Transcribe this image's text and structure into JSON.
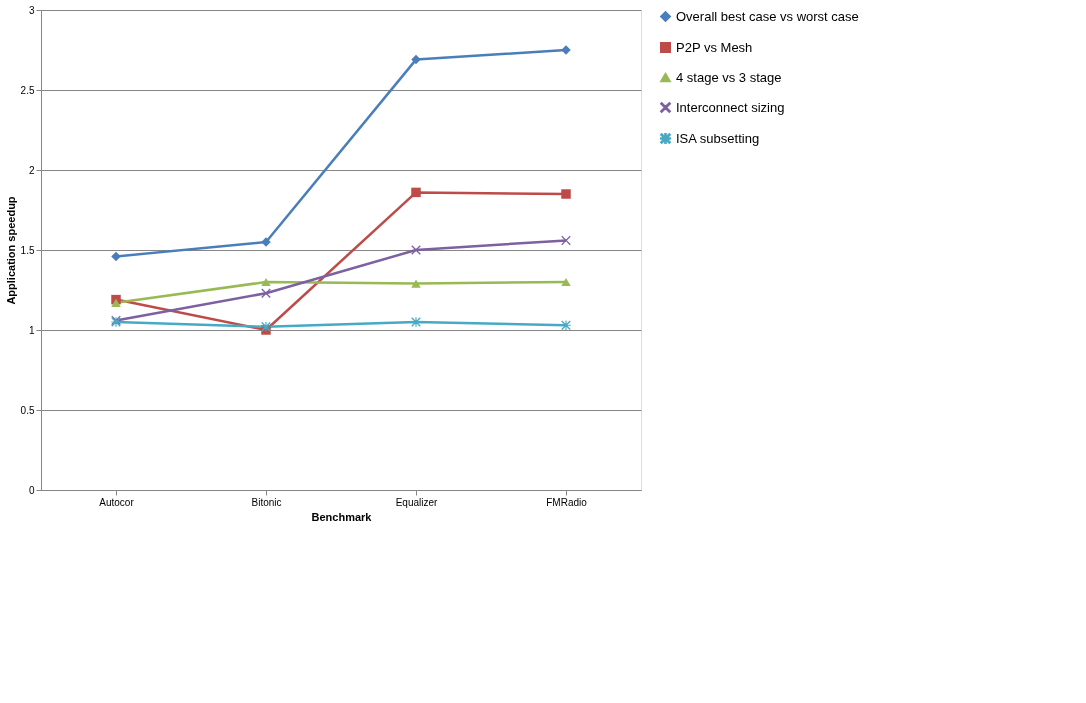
{
  "chart_data": {
    "type": "line",
    "xlabel": "Benchmark",
    "ylabel": "Application speedup",
    "categories": [
      "Autocor",
      "Bitonic",
      "Equalizer",
      "FMRadio"
    ],
    "ylim": [
      0,
      3
    ],
    "yticks": [
      0,
      0.5,
      1,
      1.5,
      2,
      2.5,
      3
    ],
    "grid": "y",
    "legend": "right",
    "series": [
      {
        "name": "Overall best case vs worst case",
        "color": "#4a7ebb",
        "marker": "diamond",
        "values": [
          1.46,
          1.55,
          2.69,
          2.75
        ]
      },
      {
        "name": "P2P vs Mesh",
        "color": "#be4b48",
        "marker": "square",
        "values": [
          1.19,
          1.0,
          1.86,
          1.85
        ]
      },
      {
        "name": "4 stage vs 3 stage",
        "color": "#98b954",
        "marker": "triangle",
        "values": [
          1.17,
          1.3,
          1.29,
          1.3
        ]
      },
      {
        "name": "Interconnect sizing",
        "color": "#7d60a0",
        "marker": "cross",
        "values": [
          1.06,
          1.23,
          1.5,
          1.56
        ]
      },
      {
        "name": "ISA subsetting",
        "color": "#46aac5",
        "marker": "star",
        "values": [
          1.05,
          1.02,
          1.05,
          1.03
        ]
      }
    ]
  }
}
